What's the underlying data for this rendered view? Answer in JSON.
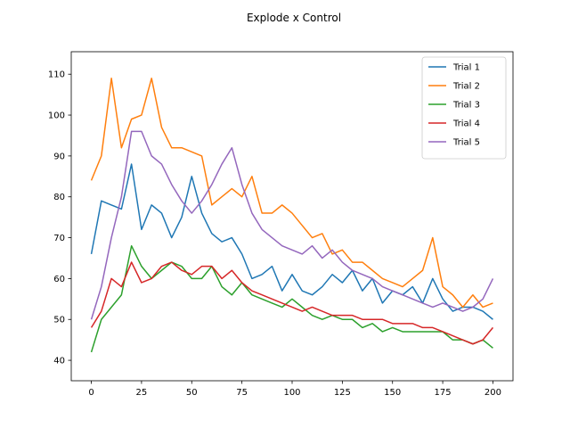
{
  "chart_data": {
    "type": "line",
    "title": "Explode x Control",
    "xlabel": "",
    "ylabel": "",
    "xlim": [
      -10,
      210
    ],
    "ylim": [
      35,
      115.5
    ],
    "xticks": [
      0,
      25,
      50,
      75,
      100,
      125,
      150,
      175,
      200
    ],
    "yticks": [
      40,
      50,
      60,
      70,
      80,
      90,
      100,
      110
    ],
    "grid": false,
    "legend_position": "top-right",
    "series": [
      {
        "name": "Trial 1",
        "color": "#1f77b4",
        "x": [
          0,
          5,
          10,
          15,
          20,
          25,
          30,
          35,
          40,
          45,
          50,
          55,
          60,
          65,
          70,
          75,
          80,
          85,
          90,
          95,
          100,
          105,
          110,
          115,
          120,
          125,
          130,
          135,
          140,
          145,
          150,
          155,
          160,
          165,
          170,
          175,
          180,
          185,
          190,
          195,
          200
        ],
        "y": [
          66,
          79,
          78,
          77,
          88,
          72,
          78,
          76,
          70,
          75,
          85,
          76,
          71,
          69,
          70,
          66,
          60,
          61,
          63,
          57,
          61,
          57,
          56,
          58,
          61,
          59,
          62,
          57,
          60,
          54,
          57,
          56,
          58,
          54,
          60,
          55,
          52,
          53,
          53,
          52,
          50
        ]
      },
      {
        "name": "Trial 2",
        "color": "#ff7f0e",
        "x": [
          0,
          5,
          10,
          15,
          20,
          25,
          30,
          35,
          40,
          45,
          50,
          55,
          60,
          65,
          70,
          75,
          80,
          85,
          90,
          95,
          100,
          105,
          110,
          115,
          120,
          125,
          130,
          135,
          140,
          145,
          150,
          155,
          160,
          165,
          170,
          175,
          180,
          185,
          190,
          195,
          200
        ],
        "y": [
          84,
          90,
          109,
          92,
          99,
          100,
          109,
          97,
          92,
          92,
          91,
          90,
          78,
          80,
          82,
          80,
          85,
          76,
          76,
          78,
          76,
          73,
          70,
          71,
          66,
          67,
          64,
          64,
          62,
          60,
          59,
          58,
          60,
          62,
          70,
          58,
          56,
          53,
          56,
          53,
          54
        ]
      },
      {
        "name": "Trial 3",
        "color": "#2ca02c",
        "x": [
          0,
          5,
          10,
          15,
          20,
          25,
          30,
          35,
          40,
          45,
          50,
          55,
          60,
          65,
          70,
          75,
          80,
          85,
          90,
          95,
          100,
          105,
          110,
          115,
          120,
          125,
          130,
          135,
          140,
          145,
          150,
          155,
          160,
          165,
          170,
          175,
          180,
          185,
          190,
          195,
          200
        ],
        "y": [
          42,
          50,
          53,
          56,
          68,
          63,
          60,
          62,
          64,
          63,
          60,
          60,
          63,
          58,
          56,
          59,
          56,
          55,
          54,
          53,
          55,
          53,
          51,
          50,
          51,
          50,
          50,
          48,
          49,
          47,
          48,
          47,
          47,
          47,
          47,
          47,
          45,
          45,
          44,
          45,
          43
        ]
      },
      {
        "name": "Trial 4",
        "color": "#d62728",
        "x": [
          0,
          5,
          10,
          15,
          20,
          25,
          30,
          35,
          40,
          45,
          50,
          55,
          60,
          65,
          70,
          75,
          80,
          85,
          90,
          95,
          100,
          105,
          110,
          115,
          120,
          125,
          130,
          135,
          140,
          145,
          150,
          155,
          160,
          165,
          170,
          175,
          180,
          185,
          190,
          195,
          200
        ],
        "y": [
          48,
          52,
          60,
          58,
          64,
          59,
          60,
          63,
          64,
          62,
          61,
          63,
          63,
          60,
          62,
          59,
          57,
          56,
          55,
          54,
          53,
          52,
          53,
          52,
          51,
          51,
          51,
          50,
          50,
          50,
          49,
          49,
          49,
          48,
          48,
          47,
          46,
          45,
          44,
          45,
          48
        ]
      },
      {
        "name": "Trial 5",
        "color": "#9467bd",
        "x": [
          0,
          5,
          10,
          15,
          20,
          25,
          30,
          35,
          40,
          45,
          50,
          55,
          60,
          65,
          70,
          75,
          80,
          85,
          90,
          95,
          100,
          105,
          110,
          115,
          120,
          125,
          130,
          135,
          140,
          145,
          150,
          155,
          160,
          165,
          170,
          175,
          180,
          185,
          190,
          195,
          200
        ],
        "y": [
          50,
          58,
          70,
          80,
          96,
          96,
          90,
          88,
          83,
          79,
          76,
          79,
          83,
          88,
          92,
          83,
          76,
          72,
          70,
          68,
          67,
          66,
          68,
          65,
          67,
          64,
          62,
          61,
          60,
          58,
          57,
          56,
          55,
          54,
          53,
          54,
          53,
          52,
          53,
          55,
          60
        ]
      }
    ]
  }
}
